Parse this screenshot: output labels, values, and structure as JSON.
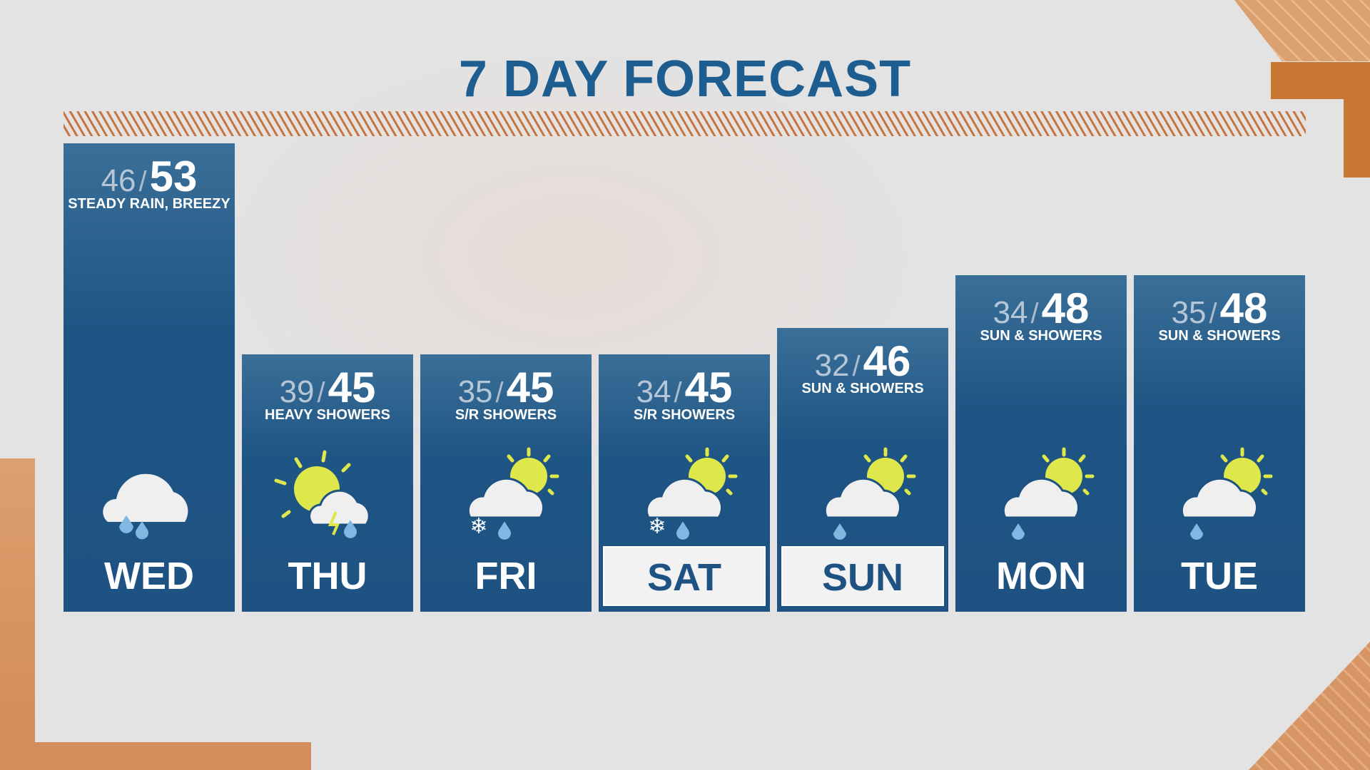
{
  "title": "7 DAY FORECAST",
  "colors": {
    "title": "#1d5d8f",
    "panel": "#1d5282",
    "accent": "#c97834",
    "sun": "#dfe84a",
    "rain": "#7fb8e0"
  },
  "days": [
    {
      "day": "WED",
      "low": "46",
      "high": "53",
      "condition": "STEADY RAIN, BREEZY",
      "icon": "rain-cloud-icon",
      "highlighted": false
    },
    {
      "day": "THU",
      "low": "39",
      "high": "45",
      "condition": "HEAVY SHOWERS",
      "icon": "sun-thunder-shower-icon",
      "highlighted": false
    },
    {
      "day": "FRI",
      "low": "35",
      "high": "45",
      "condition": "S/R SHOWERS",
      "icon": "sun-snow-rain-icon",
      "highlighted": false
    },
    {
      "day": "SAT",
      "low": "34",
      "high": "45",
      "condition": "S/R SHOWERS",
      "icon": "sun-snow-rain-icon",
      "highlighted": true
    },
    {
      "day": "SUN",
      "low": "32",
      "high": "46",
      "condition": "SUN & SHOWERS",
      "icon": "sun-shower-icon",
      "highlighted": true
    },
    {
      "day": "MON",
      "low": "34",
      "high": "48",
      "condition": "SUN & SHOWERS",
      "icon": "sun-shower-icon",
      "highlighted": false
    },
    {
      "day": "TUE",
      "low": "35",
      "high": "48",
      "condition": "SUN & SHOWERS",
      "icon": "sun-shower-icon",
      "highlighted": false
    }
  ]
}
